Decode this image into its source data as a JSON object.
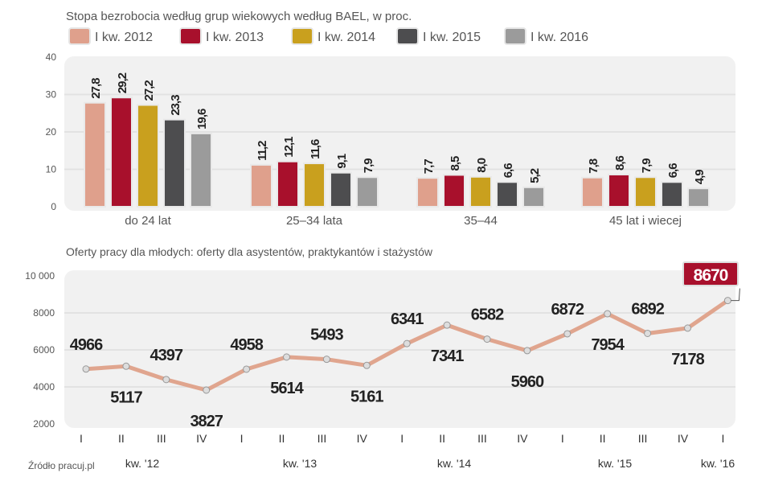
{
  "chart_data": [
    {
      "type": "bar",
      "title": "Stopa bezrobocia według grup wiekowych według BAEL, w proc.",
      "categories": [
        "do 24 lat",
        "25–34 lata",
        "35–44",
        "45 lat i wiecej"
      ],
      "ylim": [
        0,
        40
      ],
      "yticks": [
        "0",
        "10",
        "20",
        "30",
        "40"
      ],
      "grid": true,
      "legend_position": "top",
      "series": [
        {
          "name": "I kw. 2012",
          "color": "#dfa08c",
          "values": [
            27.8,
            11.2,
            7.7,
            7.8
          ],
          "labels": [
            "27,8",
            "11,2",
            "7,7",
            "7,8"
          ]
        },
        {
          "name": "I kw. 2013",
          "color": "#a8102c",
          "values": [
            29.2,
            12.1,
            8.5,
            8.6
          ],
          "labels": [
            "29,2",
            "12,1",
            "8,5",
            "8,6"
          ]
        },
        {
          "name": "I kw. 2014",
          "color": "#c9a01e",
          "values": [
            27.2,
            11.6,
            8.0,
            7.9
          ],
          "labels": [
            "27,2",
            "11,6",
            "8,0",
            "7,9"
          ]
        },
        {
          "name": "I kw. 2015",
          "color": "#4d4d4f",
          "values": [
            23.3,
            9.1,
            6.6,
            6.6
          ],
          "labels": [
            "23,3",
            "9,1",
            "6,6",
            "6,6"
          ]
        },
        {
          "name": "I kw. 2016",
          "color": "#9b9b9b",
          "values": [
            19.6,
            7.9,
            5.2,
            4.9
          ],
          "labels": [
            "19,6",
            "7,9",
            "5,2",
            "4,9"
          ]
        }
      ]
    },
    {
      "type": "line",
      "title": "Oferty pracy dla młodych: oferty dla asystentów, praktykantów i stażystów",
      "ylim": [
        2000,
        10000
      ],
      "yticks": [
        "2000",
        "4000",
        "6000",
        "8000",
        "10 000"
      ],
      "grid": true,
      "line_color": "#e0a58e",
      "highlight_color": "#a8102c",
      "x": [
        "I",
        "II",
        "III",
        "IV",
        "I",
        "II",
        "III",
        "IV",
        "I",
        "II",
        "III",
        "IV",
        "I",
        "II",
        "III",
        "IV",
        "I"
      ],
      "years": [
        "kw. '12",
        "kw. '13",
        "kw. '14",
        "kw. '15",
        "kw. '16"
      ],
      "values": [
        4966,
        5117,
        4397,
        3827,
        4958,
        5614,
        5493,
        5161,
        6341,
        7341,
        6582,
        5960,
        6872,
        7954,
        6892,
        7178,
        8670
      ],
      "labels": [
        "4966",
        "5117",
        "4397",
        "3827",
        "4958",
        "5614",
        "5493",
        "5161",
        "6341",
        "7341",
        "6582",
        "5960",
        "6872",
        "7954",
        "6892",
        "7178",
        "8670"
      ]
    }
  ],
  "source": "Źródło pracuj.pl"
}
